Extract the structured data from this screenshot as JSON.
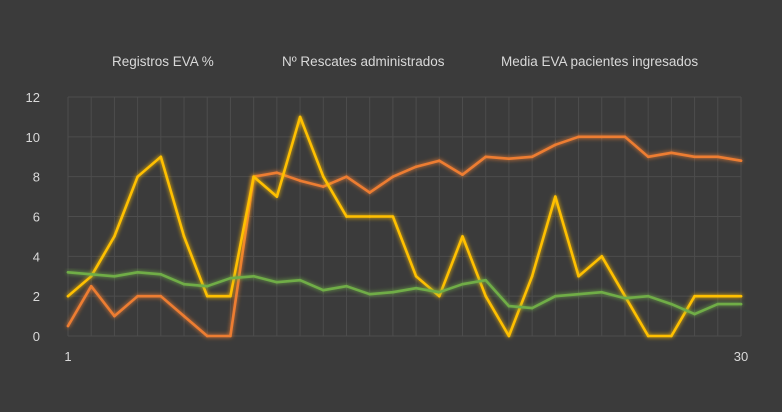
{
  "chart_data": {
    "type": "line",
    "title": "",
    "xlabel": "",
    "ylabel": "",
    "ylim": [
      0,
      12
    ],
    "yticks": [
      "0",
      "2",
      "4",
      "6",
      "8",
      "10",
      "12"
    ],
    "x": [
      1,
      2,
      3,
      4,
      5,
      6,
      7,
      8,
      9,
      10,
      11,
      12,
      13,
      14,
      15,
      16,
      17,
      18,
      19,
      20,
      21,
      22,
      23,
      24,
      25,
      26,
      27,
      28,
      29,
      30
    ],
    "xtick_labels": [
      {
        "x": 1,
        "label": "1"
      },
      {
        "x": 30,
        "label": "30"
      }
    ],
    "grid": "vertical and horizontal",
    "legend_position": "top",
    "series": [
      {
        "name": "Registros EVA %",
        "color": "#ed7d31",
        "values": [
          0.5,
          2.5,
          1,
          2,
          2,
          1,
          0,
          0,
          8,
          8.2,
          7.8,
          7.5,
          8,
          7.2,
          8,
          8.5,
          8.8,
          8.1,
          9,
          8.9,
          9,
          9.6,
          10,
          10,
          10,
          9,
          9.2,
          9,
          9,
          8.8
        ]
      },
      {
        "name": "Nº Rescates administrados",
        "color": "#ffc000",
        "values": [
          2,
          3,
          5,
          8,
          9,
          5,
          2,
          2,
          8,
          7,
          11,
          8,
          6,
          6,
          6,
          3,
          2,
          5,
          2,
          0,
          3,
          7,
          3,
          4,
          2,
          0,
          0,
          2,
          2,
          2
        ]
      },
      {
        "name": "Media EVA pacientes ingresados",
        "color": "#70ad47",
        "values": [
          3.2,
          3.1,
          3,
          3.2,
          3.1,
          2.6,
          2.5,
          2.9,
          3,
          2.7,
          2.8,
          2.3,
          2.5,
          2.1,
          2.2,
          2.4,
          2.2,
          2.6,
          2.8,
          1.5,
          1.4,
          2,
          2.1,
          2.2,
          1.9,
          2,
          1.6,
          1.1,
          1.6,
          1.6
        ]
      }
    ]
  }
}
